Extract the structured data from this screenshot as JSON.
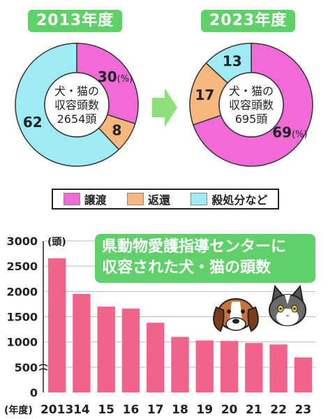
{
  "chart_data": [
    {
      "type": "pie",
      "title": "2013年度",
      "center_label": [
        "犬・猫の",
        "収容頭数",
        "2654頭"
      ],
      "slices": [
        {
          "label": "譲渡",
          "value": 30,
          "display": "30",
          "unit": "(%)",
          "color": "#f26ad8"
        },
        {
          "label": "返還",
          "value": 8,
          "display": "8",
          "color": "#f8b77d"
        },
        {
          "label": "殺処分など",
          "value": 62,
          "display": "62",
          "color": "#9fecf7"
        }
      ]
    },
    {
      "type": "pie",
      "title": "2023年度",
      "center_label": [
        "犬・猫の",
        "収容頭数",
        "695頭"
      ],
      "slices": [
        {
          "label": "譲渡",
          "value": 69,
          "display": "69",
          "unit": "(%)",
          "color": "#f26ad8"
        },
        {
          "label": "返還",
          "value": 17,
          "display": "17",
          "color": "#f8b77d"
        },
        {
          "label": "殺処分など",
          "value": 13,
          "display": "13",
          "color": "#9fecf7"
        }
      ]
    },
    {
      "type": "bar",
      "title": [
        "県動物愛護指導センターに",
        "収容された犬・猫の頭数"
      ],
      "ylabel": "(頭)",
      "xlabel": "(年度)",
      "categories": [
        "2013",
        "14",
        "15",
        "16",
        "17",
        "18",
        "19",
        "20",
        "21",
        "22",
        "23"
      ],
      "values": [
        2654,
        1950,
        1700,
        1660,
        1380,
        1100,
        1030,
        1020,
        980,
        950,
        695
      ],
      "ylim": [
        0,
        3000
      ],
      "yticks": [
        "0",
        "500",
        "1000",
        "1500",
        "2000",
        "2500",
        "3000"
      ],
      "color": "#f0648c",
      "grid": true
    }
  ],
  "legend": [
    {
      "label": "譲渡",
      "color": "#f26ad8"
    },
    {
      "label": "返還",
      "color": "#f8b77d"
    },
    {
      "label": "殺処分など",
      "color": "#9fecf7"
    }
  ],
  "colors": {
    "accent": "#5fd06a",
    "arrow": "#8fe07a"
  }
}
